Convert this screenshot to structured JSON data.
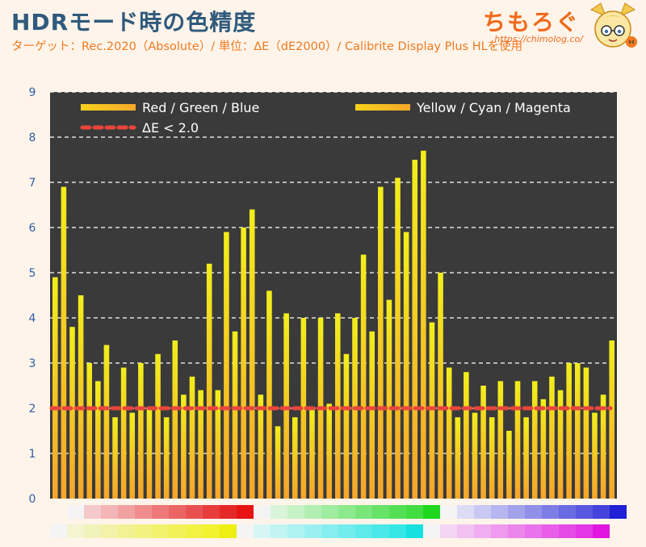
{
  "header": {
    "title": "HDRモード時の色精度",
    "subtitle": "ターゲット：Rec.2020（Absolute）/ 単位：ΔE（dE2000）/ Calibrite Display Plus HLを使用"
  },
  "brand": {
    "name": "ちもろぐ",
    "url": "https://chimolog.co/"
  },
  "colors": {
    "plot_background": "#3a3a3a",
    "bar_top": "#f2ee1c",
    "bar_bottom": "#f5a52b",
    "threshold_line": "#e8463c",
    "title": "#2f5a7c",
    "accent": "#f07a20",
    "tick": "#2f5fa8"
  },
  "chart_data": {
    "type": "bar",
    "title": "HDRモード時の色精度",
    "ylim": [
      0,
      9
    ],
    "yticks": [
      "0",
      "1",
      "2",
      "3",
      "4",
      "5",
      "6",
      "7",
      "8",
      "9"
    ],
    "grid": true,
    "legend_placement": "top",
    "legend": [
      {
        "label": "Red / Green / Blue",
        "type": "bar"
      },
      {
        "label": "Yellow / Cyan / Magenta",
        "type": "bar"
      },
      {
        "label": "ΔE < 2.0",
        "type": "line"
      }
    ],
    "threshold": 2.0,
    "values": [
      4.9,
      6.9,
      3.8,
      4.5,
      3.0,
      2.6,
      3.4,
      1.8,
      2.9,
      1.9,
      3.0,
      2.0,
      3.2,
      1.8,
      3.5,
      2.3,
      2.7,
      2.4,
      5.2,
      2.4,
      5.9,
      3.7,
      6.0,
      6.4,
      2.3,
      4.6,
      1.6,
      4.1,
      1.8,
      4.0,
      2.0,
      4.0,
      2.1,
      4.1,
      3.2,
      4.0,
      5.4,
      3.7,
      6.9,
      4.4,
      7.1,
      5.9,
      7.5,
      7.7,
      3.9,
      5.0,
      2.9,
      1.8,
      2.8,
      1.9,
      2.5,
      1.8,
      2.6,
      1.5,
      2.6,
      1.8,
      2.6,
      2.2,
      2.7,
      2.4,
      3.0,
      3.0,
      2.9,
      1.9,
      2.3,
      3.5
    ],
    "swatch_rows": [
      [
        "#f4f4f4",
        "#f5c9c9",
        "#f3b5b5",
        "#f1a1a1",
        "#ef8d8d",
        "#ed7979",
        "#eb6565",
        "#e95151",
        "#e73d3d",
        "#e52929",
        "#e81414",
        "#f4f4f4",
        "#d9f5d9",
        "#c6f2c6",
        "#b3efb3",
        "#a0eca0",
        "#8de98d",
        "#7ae67a",
        "#67e367",
        "#54e054",
        "#41dd41",
        "#1ed81e",
        "#f4f4f4",
        "#dcdcf7",
        "#c9c9f3",
        "#b6b6f0",
        "#a3a3ec",
        "#9090e9",
        "#7d7de6",
        "#6a6ae2",
        "#5757df",
        "#4444dc",
        "#2020d6"
      ],
      [
        "#f4f4f4",
        "#f4f4d0",
        "#f2f2bc",
        "#f2f2a8",
        "#f2f294",
        "#f2f280",
        "#f2f26c",
        "#f2f258",
        "#f2f244",
        "#f2f230",
        "#eeee10",
        "#f4f4f4",
        "#d6f6f6",
        "#c2f4f4",
        "#aef2f2",
        "#9af0f0",
        "#86eeee",
        "#72ecec",
        "#5eeaea",
        "#4ae8e8",
        "#36e6e6",
        "#16e0e0",
        "#f4f4f4",
        "#f4d6f4",
        "#f2c2f2",
        "#f0aef0",
        "#ee9aee",
        "#ec86ec",
        "#ea72ea",
        "#e85ee8",
        "#e64ae6",
        "#e436e4",
        "#e016e0"
      ]
    ]
  }
}
